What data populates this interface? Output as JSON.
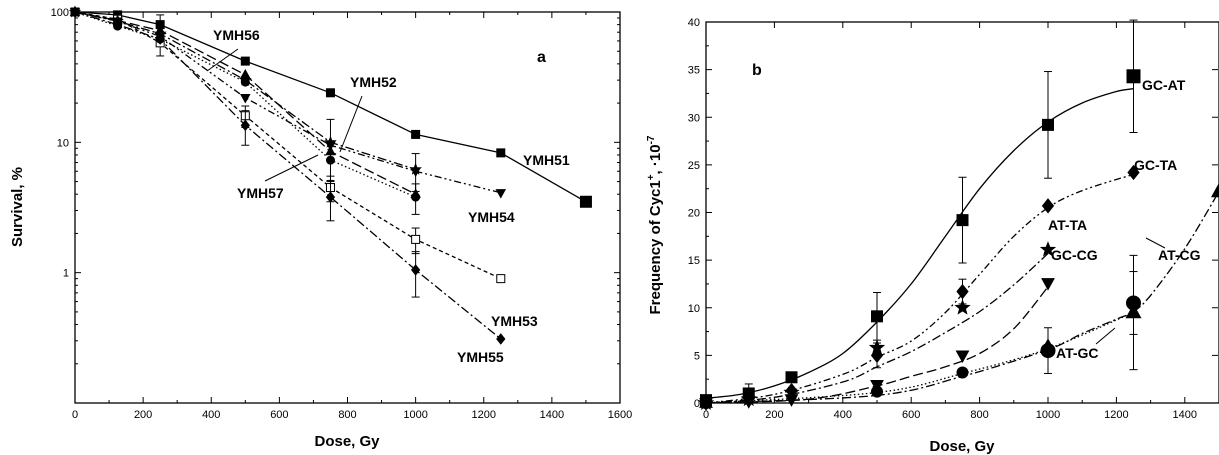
{
  "chart_data": [
    {
      "panel_label": "a",
      "type": "line",
      "xlabel": "Dose, Gy",
      "ylabel": "Survival, %",
      "xlim": [
        0,
        1600
      ],
      "ylim": [
        0.1,
        100
      ],
      "yscale": "log",
      "xticks": [
        0,
        200,
        400,
        600,
        800,
        1000,
        1200,
        1400,
        1600
      ],
      "yticks": [
        1,
        10,
        100
      ],
      "grid": false,
      "series": [
        {
          "name": "YMH51",
          "marker": "filled-square",
          "line": "solid",
          "x": [
            0,
            125,
            250,
            500,
            750,
            1000,
            1250,
            1500
          ],
          "y": [
            100,
            95,
            80,
            42,
            24,
            11.5,
            8.3,
            3.5
          ],
          "err": [
            0,
            0,
            15,
            0,
            0,
            0,
            0,
            0
          ]
        },
        {
          "name": "YMH52",
          "marker": "filled-star",
          "line": "dash-dot",
          "x": [
            0,
            125,
            250,
            500,
            750,
            1000
          ],
          "y": [
            100,
            85,
            68,
            30,
            10,
            6.2
          ],
          "err": [
            0,
            0,
            0,
            0,
            5,
            2
          ]
        },
        {
          "name": "YMH53",
          "marker": "open-square",
          "line": "short-dash",
          "x": [
            0,
            125,
            250,
            500,
            750,
            1000,
            1250
          ],
          "y": [
            100,
            88,
            58,
            16,
            4.5,
            1.8,
            0.9
          ],
          "err": [
            0,
            0,
            12,
            3,
            1,
            0.4,
            0
          ]
        },
        {
          "name": "YMH54",
          "marker": "filled-triangle-down",
          "line": "dash-dot-dot",
          "x": [
            0,
            125,
            250,
            500,
            750,
            1000,
            1250
          ],
          "y": [
            100,
            85,
            65,
            22,
            9.5,
            6,
            4.1
          ],
          "err": [
            0,
            0,
            0,
            0,
            0,
            0,
            0
          ]
        },
        {
          "name": "YMH55",
          "marker": "filled-diamond",
          "line": "dash-dot",
          "x": [
            0,
            125,
            250,
            500,
            750,
            1000,
            1250
          ],
          "y": [
            100,
            80,
            62,
            13.5,
            3.8,
            1.05,
            0.31
          ],
          "err": [
            0,
            0,
            0,
            4,
            1.3,
            0.4,
            0
          ]
        },
        {
          "name": "YMH56",
          "marker": "filled-triangle-up",
          "line": "long-dash",
          "x": [
            0,
            125,
            250,
            500,
            750,
            1000
          ],
          "y": [
            100,
            86,
            72,
            33,
            8.5,
            4
          ],
          "err": [
            0,
            0,
            0,
            0,
            0,
            0
          ]
        },
        {
          "name": "YMH57",
          "marker": "filled-circle",
          "line": "dotted",
          "x": [
            0,
            125,
            250,
            500,
            750,
            1000
          ],
          "y": [
            100,
            78,
            62,
            29,
            7.3,
            3.8
          ],
          "err": [
            0,
            0,
            0,
            0,
            0,
            1
          ]
        }
      ]
    },
    {
      "panel_label": "b",
      "type": "line",
      "xlabel": "Dose, Gy",
      "ylabel_main": "Frequency of Cyc1",
      "ylabel_sup1": "+",
      "ylabel_mid": ", ·10",
      "ylabel_sup2": "-7",
      "xlim": [
        0,
        1500
      ],
      "ylim": [
        0,
        40
      ],
      "xticks": [
        0,
        200,
        400,
        600,
        800,
        1000,
        1200,
        1400
      ],
      "yticks": [
        0,
        5,
        10,
        15,
        20,
        25,
        30,
        35,
        40
      ],
      "grid": false,
      "series": [
        {
          "name": "GC-AT",
          "marker": "filled-square",
          "line": "solid",
          "x": [
            0,
            125,
            250,
            500,
            750,
            1000,
            1250
          ],
          "y": [
            0.3,
            1,
            2.7,
            9.1,
            19.2,
            29.2,
            34.3
          ],
          "err": [
            0,
            1,
            0,
            2.5,
            4.5,
            5.6,
            5.9
          ],
          "curve": [
            [
              0,
              0.5
            ],
            [
              100,
              0.9
            ],
            [
              200,
              1.8
            ],
            [
              300,
              3.2
            ],
            [
              400,
              5.2
            ],
            [
              500,
              8.5
            ],
            [
              600,
              12.5
            ],
            [
              700,
              17.5
            ],
            [
              800,
              22.5
            ],
            [
              900,
              26.5
            ],
            [
              1000,
              29.5
            ],
            [
              1100,
              31.5
            ],
            [
              1200,
              32.7
            ],
            [
              1250,
              33
            ]
          ]
        },
        {
          "name": "GC-TA",
          "marker": "filled-diamond",
          "line": "dash-dot-dot",
          "x": [
            0,
            125,
            250,
            500,
            750,
            1000,
            1250
          ],
          "y": [
            0,
            0.5,
            1.3,
            5,
            11.7,
            20.7,
            24.2
          ],
          "err": [
            0,
            0,
            0,
            1.3,
            1.3,
            0,
            0
          ],
          "curve": [
            [
              0,
              0
            ],
            [
              200,
              0.9
            ],
            [
              400,
              3
            ],
            [
              500,
              4.8
            ],
            [
              600,
              6.5
            ],
            [
              700,
              9.5
            ],
            [
              800,
              13.5
            ],
            [
              900,
              17.5
            ],
            [
              1000,
              20.5
            ],
            [
              1100,
              22.3
            ],
            [
              1250,
              24
            ]
          ]
        },
        {
          "name": "AT-TA",
          "marker": "filled-star",
          "line": "dash-dot",
          "x": [
            0,
            125,
            250,
            500,
            750,
            1000
          ],
          "y": [
            0,
            0.4,
            1.1,
            5.8,
            10,
            16.1
          ],
          "err": [
            0,
            0,
            0,
            0,
            0,
            0
          ],
          "curve": [
            [
              0,
              0
            ],
            [
              200,
              0.6
            ],
            [
              400,
              2.2
            ],
            [
              500,
              3.8
            ],
            [
              600,
              5.4
            ],
            [
              700,
              7.4
            ],
            [
              800,
              9.6
            ],
            [
              900,
              12.4
            ],
            [
              1000,
              15.7
            ]
          ]
        },
        {
          "name": "GC-CG",
          "marker": "filled-triangle-down",
          "line": "long-dash",
          "x": [
            0,
            125,
            250,
            500,
            750,
            1000
          ],
          "y": [
            0,
            0.2,
            0.4,
            1.9,
            5,
            12.6
          ],
          "err": [
            0,
            0,
            0,
            0,
            0,
            0
          ],
          "curve": [
            [
              0,
              0
            ],
            [
              300,
              0.4
            ],
            [
              500,
              1.8
            ],
            [
              600,
              2.8
            ],
            [
              700,
              3.8
            ],
            [
              800,
              5.2
            ],
            [
              900,
              7.8
            ],
            [
              1000,
              12.2
            ]
          ]
        },
        {
          "name": "AT-CG",
          "marker": "filled-triangle-up",
          "line": "dash-dot",
          "x": [
            0,
            1000,
            1250,
            1500
          ],
          "y": [
            0,
            6,
            9.5,
            22.2
          ],
          "err": [
            0,
            0,
            6,
            0
          ],
          "curve": [
            [
              0,
              0
            ],
            [
              500,
              0.8
            ],
            [
              750,
              2.8
            ],
            [
              1000,
              5.6
            ],
            [
              1100,
              7.3
            ],
            [
              1200,
              8.8
            ],
            [
              1250,
              9.6
            ],
            [
              1300,
              11.3
            ],
            [
              1400,
              16.2
            ],
            [
              1500,
              22.2
            ]
          ]
        },
        {
          "name": "AT-GC",
          "marker": "filled-circle",
          "line": "dotted",
          "x": [
            0,
            500,
            750,
            1000,
            1250
          ],
          "y": [
            0,
            1.2,
            3.2,
            5.5,
            10.5
          ],
          "err": [
            0,
            0,
            0,
            2.4,
            3.3
          ],
          "curve": [
            [
              0,
              0
            ],
            [
              500,
              1.1
            ],
            [
              750,
              3.1
            ],
            [
              1000,
              5.7
            ],
            [
              1250,
              9.5
            ]
          ]
        }
      ]
    }
  ]
}
